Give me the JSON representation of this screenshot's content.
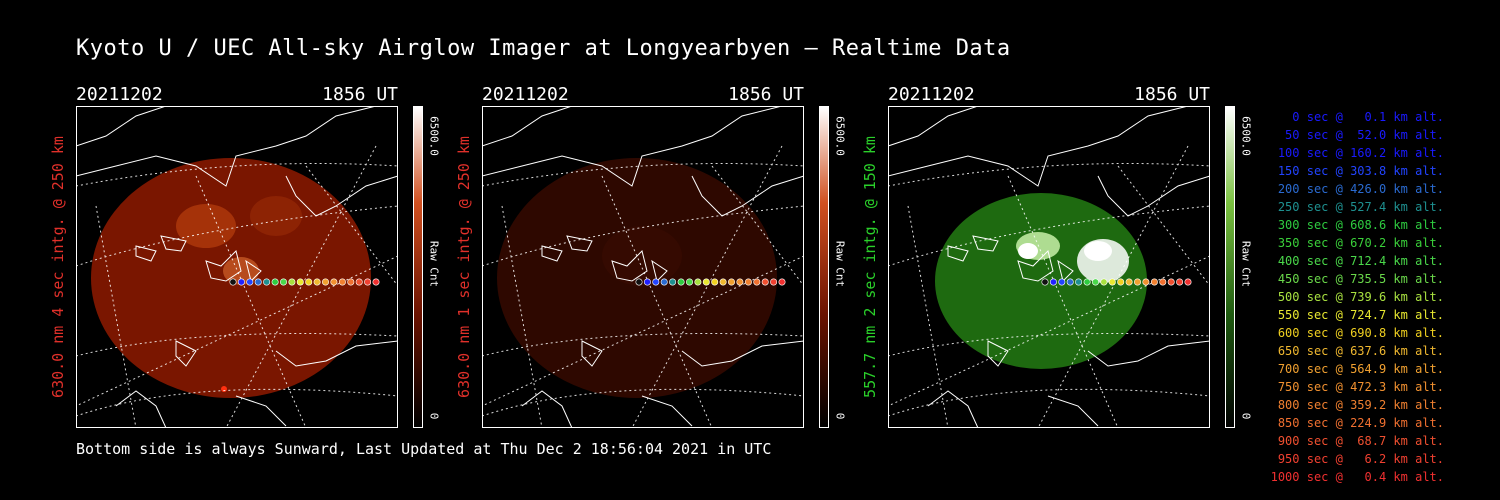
{
  "title": "Kyoto U / UEC All-sky Airglow Imager at Longyearbyen — Realtime Data",
  "footer": "Bottom side is always Sunward, Last Updated at Thu Dec  2 18:56:04 2021 in UTC",
  "panels": [
    {
      "date": "20211202",
      "time": "1856 UT",
      "ylabel": "630.0 nm 4 sec intg. @ 250 km",
      "ylabel_color": "#e0302a",
      "cbar_max": "6500.0",
      "cbar_unit": "Raw Cnt",
      "cbar_min": "0",
      "theme": "red-bright"
    },
    {
      "date": "20211202",
      "time": "1856 UT",
      "ylabel": "630.0 nm 1 sec intg. @ 250 km",
      "ylabel_color": "#e0302a",
      "cbar_max": "6500.0",
      "cbar_unit": "Raw Cnt",
      "cbar_min": "0",
      "theme": "red-dim"
    },
    {
      "date": "20211202",
      "time": "1856 UT",
      "ylabel": "557.7 nm 2 sec intg. @ 150 km",
      "ylabel_color": "#2ad02a",
      "cbar_max": "6500.0",
      "cbar_unit": "Raw Cnt",
      "cbar_min": "0",
      "theme": "green"
    }
  ],
  "legend": [
    {
      "text": "0 sec @   0.1 km alt.",
      "color": "#1a1aff"
    },
    {
      "text": "50 sec @  52.0 km alt.",
      "color": "#1a1aff"
    },
    {
      "text": "100 sec @ 160.2 km alt.",
      "color": "#1a1aff"
    },
    {
      "text": "150 sec @ 303.8 km alt.",
      "color": "#2244ff"
    },
    {
      "text": "200 sec @ 426.0 km alt.",
      "color": "#2a6ad0"
    },
    {
      "text": "250 sec @ 527.4 km alt.",
      "color": "#1e9090"
    },
    {
      "text": "300 sec @ 608.6 km alt.",
      "color": "#2ecc40"
    },
    {
      "text": "350 sec @ 670.2 km alt.",
      "color": "#3ad03a"
    },
    {
      "text": "400 sec @ 712.4 km alt.",
      "color": "#4ad84a"
    },
    {
      "text": "450 sec @ 735.5 km alt.",
      "color": "#6ad84a"
    },
    {
      "text": "500 sec @ 739.6 km alt.",
      "color": "#a8e040"
    },
    {
      "text": "550 sec @ 724.7 km alt.",
      "color": "#e8e830"
    },
    {
      "text": "600 sec @ 690.8 km alt.",
      "color": "#f0d020"
    },
    {
      "text": "650 sec @ 637.6 km alt.",
      "color": "#f0b830"
    },
    {
      "text": "700 sec @ 564.9 km alt.",
      "color": "#f0a030"
    },
    {
      "text": "750 sec @ 472.3 km alt.",
      "color": "#f09030"
    },
    {
      "text": "800 sec @ 359.2 km alt.",
      "color": "#f08030"
    },
    {
      "text": "850 sec @ 224.9 km alt.",
      "color": "#f07030"
    },
    {
      "text": "900 sec @  68.7 km alt.",
      "color": "#f05030"
    },
    {
      "text": "950 sec @   6.2 km alt.",
      "color": "#f04030"
    },
    {
      "text": "1000 sec @   0.4 km alt.",
      "color": "#f03030"
    }
  ]
}
